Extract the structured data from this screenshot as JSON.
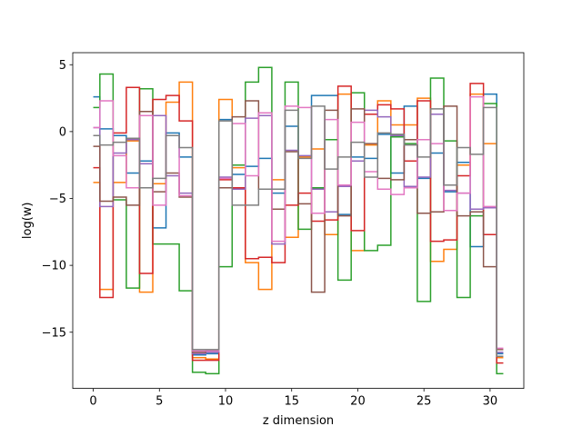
{
  "chart_data": {
    "type": "line",
    "drawstyle": "steps-mid",
    "title": "",
    "xlabel": "z dimension",
    "ylabel": "log(w)",
    "xlim": [
      -1.55,
      32.55
    ],
    "ylim": [
      -19.2,
      5.9
    ],
    "xticks": [
      0,
      5,
      10,
      15,
      20,
      25,
      30
    ],
    "yticks": [
      -15,
      -10,
      -5,
      0,
      5
    ],
    "grid": false,
    "legend": "none",
    "x": [
      0,
      1,
      2,
      3,
      4,
      5,
      6,
      7,
      8,
      9,
      10,
      11,
      12,
      13,
      14,
      15,
      16,
      17,
      18,
      19,
      20,
      21,
      22,
      23,
      24,
      25,
      26,
      27,
      28,
      29,
      30,
      31
    ],
    "series": [
      {
        "color": "#1f77b4",
        "values": [
          2.6,
          0.2,
          -0.3,
          -3.1,
          -2.2,
          -7.2,
          -0.1,
          -1.9,
          -16.7,
          -16.6,
          0.9,
          -3.2,
          -2.6,
          -2.0,
          -4.6,
          0.4,
          -1.9,
          2.7,
          2.7,
          -6.2,
          -1.9,
          -2.0,
          -0.2,
          -3.1,
          1.9,
          -3.5,
          -1.6,
          -4.5,
          -2.3,
          -8.6,
          2.8,
          -16.6
        ]
      },
      {
        "color": "#ff7f0e",
        "values": [
          -3.8,
          -11.8,
          -3.8,
          -0.7,
          -12.0,
          -3.9,
          2.2,
          3.7,
          -16.9,
          -17.0,
          2.4,
          -2.7,
          -9.8,
          -11.8,
          -3.6,
          -7.9,
          -1.9,
          -1.3,
          -7.7,
          2.8,
          -8.9,
          -1.0,
          2.3,
          0.5,
          0.5,
          2.5,
          -9.7,
          -8.8,
          -2.5,
          2.8,
          -0.9,
          -16.9
        ]
      },
      {
        "color": "#2ca02c",
        "values": [
          1.8,
          4.3,
          -5.1,
          -11.7,
          3.2,
          -8.4,
          -8.4,
          -11.9,
          -18.0,
          -18.1,
          -10.1,
          -2.5,
          3.7,
          4.8,
          -4.3,
          3.7,
          -7.3,
          -4.2,
          -0.6,
          -11.1,
          2.9,
          -8.9,
          -8.5,
          -0.4,
          -0.9,
          -12.7,
          4.0,
          -0.7,
          -12.4,
          -6.3,
          2.1,
          -18.1
        ]
      },
      {
        "color": "#d62728",
        "values": [
          -2.7,
          -12.4,
          -0.1,
          3.3,
          -10.6,
          2.4,
          2.7,
          0.8,
          -17.1,
          -17.1,
          -3.6,
          -4.2,
          -9.5,
          -9.4,
          -9.8,
          -5.5,
          -4.6,
          -6.7,
          -6.6,
          3.4,
          -7.4,
          1.3,
          2.0,
          1.7,
          -2.2,
          2.3,
          -8.2,
          -8.1,
          -3.3,
          3.6,
          -7.7,
          -17.3
        ]
      },
      {
        "color": "#9467bd",
        "values": [
          0.3,
          -5.6,
          -1.6,
          -0.6,
          -2.4,
          1.2,
          -3.3,
          -4.6,
          -16.6,
          -16.5,
          -3.4,
          -4.3,
          1.0,
          1.2,
          -8.4,
          -1.4,
          -1.8,
          -4.3,
          -6.0,
          -4.1,
          -2.2,
          1.6,
          1.1,
          -0.3,
          -4.1,
          -3.4,
          1.3,
          -4.4,
          -4.6,
          -5.8,
          -5.7,
          -16.5
        ]
      },
      {
        "color": "#8c564b",
        "values": [
          -1.1,
          -5.2,
          -4.9,
          -5.5,
          1.5,
          -4.5,
          -3.1,
          -4.9,
          -16.5,
          -16.4,
          -4.2,
          1.1,
          2.3,
          -4.3,
          -5.8,
          -1.5,
          -5.4,
          -12.0,
          1.6,
          -6.3,
          1.7,
          -0.9,
          -3.5,
          -3.6,
          -0.6,
          -6.1,
          -6.0,
          1.9,
          -6.3,
          -6.0,
          -10.1,
          -16.3
        ]
      },
      {
        "color": "#e377c2",
        "values": [
          0.3,
          2.3,
          -1.8,
          -4.2,
          1.2,
          -5.5,
          -0.3,
          -4.8,
          -16.4,
          -16.4,
          -3.5,
          0.6,
          -3.3,
          1.4,
          -8.2,
          1.9,
          1.8,
          -6.1,
          0.9,
          -4.0,
          0.7,
          -3.0,
          -4.3,
          -4.7,
          -4.2,
          -0.6,
          -0.9,
          -5.9,
          -4.6,
          2.6,
          -5.6,
          -16.2
        ]
      },
      {
        "color": "#7f7f7f",
        "values": [
          -0.3,
          -1.0,
          -0.8,
          -0.5,
          -4.2,
          -3.5,
          -0.3,
          -1.2,
          -16.3,
          -16.3,
          0.8,
          -5.5,
          -5.5,
          -4.3,
          -4.3,
          1.6,
          -2.0,
          1.9,
          -2.8,
          -1.9,
          -0.8,
          -3.4,
          -0.1,
          -0.2,
          -1.0,
          -1.9,
          1.7,
          -4.0,
          -1.2,
          -1.7,
          1.8,
          -16.8
        ]
      }
    ]
  }
}
